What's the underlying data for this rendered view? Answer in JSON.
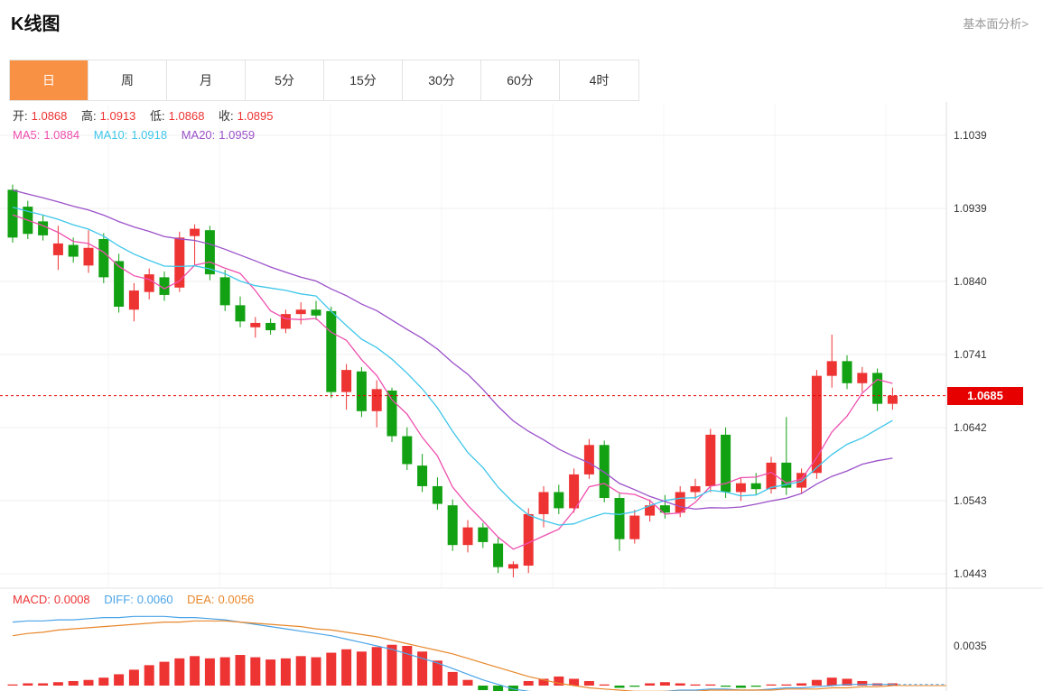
{
  "header": {
    "title": "K线图",
    "analysis_link": "基本面分析>"
  },
  "tabs": {
    "items": [
      {
        "label": "日",
        "active": true
      },
      {
        "label": "周",
        "active": false
      },
      {
        "label": "月",
        "active": false
      },
      {
        "label": "5分",
        "active": false
      },
      {
        "label": "15分",
        "active": false
      },
      {
        "label": "30分",
        "active": false
      },
      {
        "label": "60分",
        "active": false
      },
      {
        "label": "4时",
        "active": false
      }
    ]
  },
  "legend": {
    "open_label": "开:",
    "open_value": "1.0868",
    "high_label": "高:",
    "high_value": "1.0913",
    "low_label": "低:",
    "low_value": "1.0868",
    "close_label": "收:",
    "close_value": "1.0895",
    "ma5_label": "MA5:",
    "ma5_value": "1.0884",
    "ma10_label": "MA10:",
    "ma10_value": "1.0918",
    "ma20_label": "MA20:",
    "ma20_value": "1.0959"
  },
  "macd_legend": {
    "macd_label": "MACD:",
    "macd_value": "0.0008",
    "diff_label": "DIFF:",
    "diff_value": "0.0060",
    "dea_label": "DEA:",
    "dea_value": "0.0056"
  },
  "colors": {
    "up": "#ee3333",
    "down": "#12a112",
    "ma5": "#ef4faf",
    "ma10": "#3ec6ea",
    "ma20": "#9b51c9",
    "diff": "#4aa4e8",
    "dea": "#e8872b",
    "price_line": "#e60000",
    "badge_bg": "#e60000",
    "accent_orange": "#f89144",
    "grid": "#efefef",
    "axis_border": "#dcdcdc"
  },
  "chart_data": {
    "type": "candlestick",
    "main": {
      "y_axis": [
        "1.1039",
        "1.0939",
        "1.0840",
        "1.0741",
        "1.0642",
        "1.0543",
        "1.0443"
      ],
      "range": [
        1.1039,
        1.0443
      ],
      "current_price": 1.0685,
      "current_price_label": "1.0685",
      "overlays": [
        "MA5",
        "MA10",
        "MA20"
      ],
      "history_closes": [
        1.101,
        1.1005,
        1.1,
        1.0995,
        1.099,
        1.0985,
        1.098,
        1.0975,
        1.097,
        1.0965,
        1.096,
        1.0955,
        1.095,
        1.0948,
        1.0945,
        1.0942,
        1.094,
        1.0938,
        1.0935
      ],
      "candles": [
        [
          1.0965,
          1.0972,
          1.0893,
          1.09
        ],
        [
          1.0942,
          1.095,
          1.0898,
          1.0905
        ],
        [
          1.0922,
          1.093,
          1.0896,
          1.0903
        ],
        [
          1.0876,
          1.0916,
          1.0856,
          1.0892
        ],
        [
          1.089,
          1.09,
          1.0866,
          1.0874
        ],
        [
          1.0862,
          1.091,
          1.0852,
          1.0886
        ],
        [
          1.0898,
          1.0906,
          1.0838,
          1.0846
        ],
        [
          1.0868,
          1.0878,
          1.0798,
          1.0806
        ],
        [
          1.0802,
          1.0838,
          1.0786,
          1.0828
        ],
        [
          1.0826,
          1.0858,
          1.0816,
          1.085
        ],
        [
          1.0846,
          1.0854,
          1.0814,
          1.0822
        ],
        [
          1.0832,
          1.0908,
          1.0826,
          1.09
        ],
        [
          1.0902,
          1.0918,
          1.0862,
          1.0912
        ],
        [
          1.091,
          1.0916,
          1.0842,
          1.085
        ],
        [
          1.0846,
          1.0856,
          1.08,
          1.0808
        ],
        [
          1.0808,
          1.082,
          1.0778,
          1.0786
        ],
        [
          1.0778,
          1.0792,
          1.0764,
          1.0784
        ],
        [
          1.0784,
          1.079,
          1.0768,
          1.0774
        ],
        [
          1.0776,
          1.0802,
          1.077,
          1.0796
        ],
        [
          1.0796,
          1.0812,
          1.0782,
          1.0802
        ],
        [
          1.0802,
          1.0814,
          1.0788,
          1.0794
        ],
        [
          1.08,
          1.0806,
          1.0682,
          1.069
        ],
        [
          1.069,
          1.0728,
          1.0666,
          1.072
        ],
        [
          1.0718,
          1.0724,
          1.0656,
          1.0664
        ],
        [
          1.0664,
          1.0706,
          1.0642,
          1.0694
        ],
        [
          1.0692,
          1.0696,
          1.0622,
          1.063
        ],
        [
          1.063,
          1.0642,
          1.0584,
          1.0592
        ],
        [
          1.059,
          1.0606,
          1.0554,
          1.0562
        ],
        [
          1.0562,
          1.0574,
          1.053,
          1.0538
        ],
        [
          1.0536,
          1.0544,
          1.0474,
          1.0482
        ],
        [
          1.0482,
          1.0516,
          1.0472,
          1.0506
        ],
        [
          1.0506,
          1.0512,
          1.0478,
          1.0486
        ],
        [
          1.0484,
          1.0492,
          1.0444,
          1.0452
        ],
        [
          1.045,
          1.046,
          1.0438,
          1.0456
        ],
        [
          1.0454,
          1.0532,
          1.0444,
          1.0524
        ],
        [
          1.0524,
          1.0562,
          1.0506,
          1.0554
        ],
        [
          1.0554,
          1.0564,
          1.0524,
          1.0532
        ],
        [
          1.0532,
          1.0586,
          1.0526,
          1.0578
        ],
        [
          1.0578,
          1.0626,
          1.0572,
          1.0618
        ],
        [
          1.0618,
          1.0624,
          1.054,
          1.0546
        ],
        [
          1.0546,
          1.0554,
          1.0474,
          1.049
        ],
        [
          1.049,
          1.053,
          1.0484,
          1.0522
        ],
        [
          1.0522,
          1.0544,
          1.0514,
          1.0536
        ],
        [
          1.0536,
          1.055,
          1.0518,
          1.0526
        ],
        [
          1.0526,
          1.0562,
          1.052,
          1.0554
        ],
        [
          1.0554,
          1.0572,
          1.0544,
          1.0562
        ],
        [
          1.0562,
          1.064,
          1.0554,
          1.0632
        ],
        [
          1.0632,
          1.0642,
          1.0546,
          1.0554
        ],
        [
          1.0554,
          1.0574,
          1.0542,
          1.0566
        ],
        [
          1.0566,
          1.058,
          1.055,
          1.0558
        ],
        [
          1.0558,
          1.0602,
          1.0552,
          1.0594
        ],
        [
          1.0594,
          1.0656,
          1.055,
          1.056
        ],
        [
          1.056,
          1.0586,
          1.0552,
          1.058
        ],
        [
          1.058,
          1.072,
          1.0572,
          1.0712
        ],
        [
          1.0712,
          1.0768,
          1.0696,
          1.0732
        ],
        [
          1.0732,
          1.074,
          1.0694,
          1.0702
        ],
        [
          1.0702,
          1.0724,
          1.069,
          1.0716
        ],
        [
          1.0716,
          1.0722,
          1.0664,
          1.0674
        ],
        [
          1.0674,
          1.0696,
          1.0666,
          1.0685
        ]
      ]
    },
    "macd": {
      "axis_label": "0.0035",
      "axis_value": 0.0035,
      "hist": [
        0.0001,
        0.0002,
        0.0002,
        0.0003,
        0.0004,
        0.0005,
        0.0007,
        0.001,
        0.0014,
        0.0018,
        0.0021,
        0.0024,
        0.0026,
        0.0024,
        0.0025,
        0.0027,
        0.0025,
        0.0023,
        0.0024,
        0.0026,
        0.0025,
        0.0029,
        0.0032,
        0.003,
        0.0034,
        0.0036,
        0.0035,
        0.003,
        0.0022,
        0.0012,
        0.0005,
        -0.0004,
        -0.0006,
        -0.0005,
        0.0004,
        0.0006,
        0.0008,
        0.0006,
        0.0004,
        0.0001,
        -0.0002,
        -0.0001,
        0.0002,
        0.0003,
        0.0002,
        0.0001,
        0.0001,
        -0.0001,
        -0.0002,
        -0.0001,
        0.0001,
        0.0001,
        0.0002,
        0.0005,
        0.0007,
        0.0006,
        0.0004,
        0.0002,
        0.0002
      ],
      "diff": [
        0.0056,
        0.0057,
        0.0057,
        0.0058,
        0.0058,
        0.0059,
        0.006,
        0.006,
        0.0061,
        0.0061,
        0.0061,
        0.006,
        0.006,
        0.0059,
        0.0058,
        0.0056,
        0.0054,
        0.0052,
        0.005,
        0.0048,
        0.0046,
        0.0044,
        0.0041,
        0.0038,
        0.0035,
        0.0032,
        0.0028,
        0.0024,
        0.002,
        0.0015,
        0.001,
        0.0005,
        0.0001,
        -0.0003,
        -0.0005,
        -0.0006,
        -0.0006,
        -0.0007,
        -0.0007,
        -0.0008,
        -0.0008,
        -0.0007,
        -0.0006,
        -0.0005,
        -0.0004,
        -0.0004,
        -0.0003,
        -0.0003,
        -0.0004,
        -0.0004,
        -0.0003,
        -0.0002,
        -0.0002,
        -0.0001,
        0.0,
        0.0001,
        0.0001,
        0.0001,
        0.0001
      ],
      "dea": [
        0.0044,
        0.0046,
        0.0047,
        0.0049,
        0.005,
        0.0051,
        0.0052,
        0.0053,
        0.0054,
        0.0055,
        0.0056,
        0.0056,
        0.0057,
        0.0057,
        0.0057,
        0.0056,
        0.0055,
        0.0054,
        0.0053,
        0.0052,
        0.005,
        0.0049,
        0.0047,
        0.0045,
        0.0043,
        0.004,
        0.0037,
        0.0034,
        0.0031,
        0.0028,
        0.0024,
        0.002,
        0.0016,
        0.0012,
        0.0008,
        0.0005,
        0.0002,
        0.0,
        -0.0002,
        -0.0003,
        -0.0004,
        -0.0005,
        -0.0005,
        -0.0005,
        -0.0005,
        -0.0005,
        -0.0004,
        -0.0004,
        -0.0004,
        -0.0004,
        -0.0004,
        -0.0003,
        -0.0003,
        -0.0003,
        -0.0002,
        -0.0002,
        -0.0001,
        -0.0001,
        0.0
      ]
    }
  }
}
